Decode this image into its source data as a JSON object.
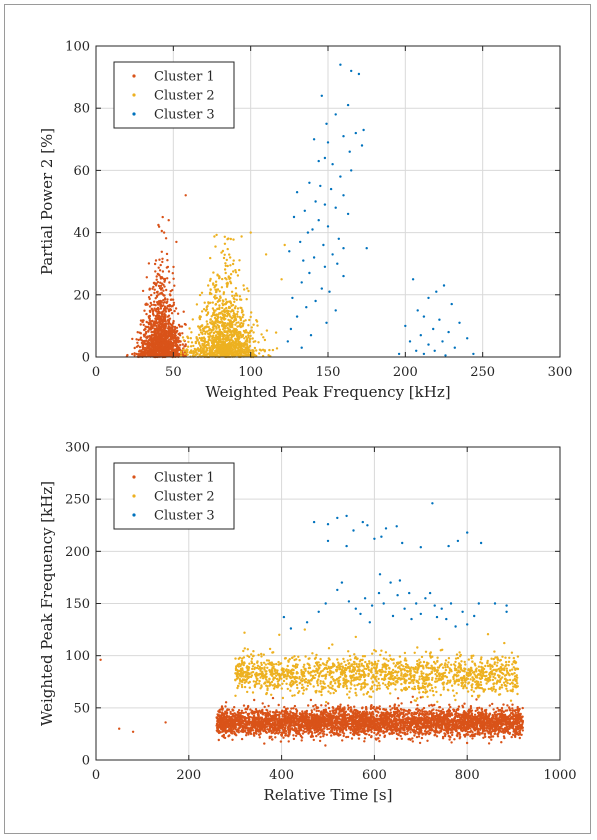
{
  "colors": {
    "cluster1": "#D95319",
    "cluster2": "#EDB120",
    "cluster3": "#0072BD",
    "grid": "#d9d9d9",
    "axis": "#262626"
  },
  "chart_data": [
    {
      "type": "scatter",
      "xlabel": "Weighted Peak Frequency [kHz]",
      "ylabel": "Partial Power 2 [%]",
      "xlim": [
        0,
        300
      ],
      "ylim": [
        0,
        100
      ],
      "xticks": [
        "0",
        "50",
        "100",
        "150",
        "200",
        "250",
        "300"
      ],
      "yticks": [
        "0",
        "20",
        "40",
        "60",
        "80",
        "100"
      ],
      "grid": true,
      "legend": "top-left",
      "series": [
        {
          "name": "Cluster 1",
          "color": "#D95319",
          "cluster": {
            "n": 1400,
            "xmean": 42,
            "xsd": 6.5,
            "ymode": "expdecay",
            "ymean": 6,
            "ymax": 45,
            "xmin": 20,
            "xmax": 58
          },
          "points": [
            [
              47,
              44
            ],
            [
              58,
              52
            ],
            [
              52,
              37
            ],
            [
              44,
              40
            ]
          ]
        },
        {
          "name": "Cluster 2",
          "color": "#EDB120",
          "cluster": {
            "n": 1200,
            "xmean": 83,
            "xsd": 10,
            "ymode": "expdecay",
            "ymean": 7,
            "ymax": 40,
            "xmin": 55,
            "xmax": 125
          },
          "points": [
            [
              100,
              40
            ],
            [
              110,
              33
            ],
            [
              122,
              36
            ],
            [
              120,
              25
            ]
          ]
        },
        {
          "name": "Cluster 3",
          "color": "#0072BD",
          "points": [
            [
              158,
              94
            ],
            [
              165,
              92
            ],
            [
              170,
              91
            ],
            [
              146,
              84
            ],
            [
              163,
              81
            ],
            [
              155,
              78
            ],
            [
              149,
              75
            ],
            [
              168,
              72
            ],
            [
              173,
              73
            ],
            [
              160,
              71
            ],
            [
              141,
              70
            ],
            [
              150,
              69
            ],
            [
              172,
              68
            ],
            [
              164,
              66
            ],
            [
              148,
              64
            ],
            [
              144,
              63
            ],
            [
              153,
              62
            ],
            [
              165,
              60
            ],
            [
              158,
              58
            ],
            [
              138,
              56
            ],
            [
              145,
              55
            ],
            [
              152,
              54
            ],
            [
              130,
              53
            ],
            [
              160,
              52
            ],
            [
              142,
              50
            ],
            [
              148,
              49
            ],
            [
              155,
              48
            ],
            [
              135,
              47
            ],
            [
              163,
              46
            ],
            [
              128,
              45
            ],
            [
              144,
              44
            ],
            [
              150,
              42
            ],
            [
              140,
              41
            ],
            [
              137,
              40
            ],
            [
              157,
              38
            ],
            [
              132,
              37
            ],
            [
              147,
              36
            ],
            [
              160,
              35
            ],
            [
              175,
              35
            ],
            [
              125,
              34
            ],
            [
              153,
              33
            ],
            [
              141,
              32
            ],
            [
              134,
              31
            ],
            [
              156,
              30
            ],
            [
              148,
              29
            ],
            [
              138,
              27
            ],
            [
              160,
              26
            ],
            [
              133,
              24
            ],
            [
              146,
              22
            ],
            [
              151,
              21
            ],
            [
              127,
              19
            ],
            [
              142,
              18
            ],
            [
              136,
              16
            ],
            [
              155,
              15
            ],
            [
              130,
              13
            ],
            [
              149,
              11
            ],
            [
              126,
              9
            ],
            [
              139,
              7
            ],
            [
              124,
              5
            ],
            [
              133,
              3
            ],
            [
              205,
              25
            ],
            [
              225,
              23
            ],
            [
              220,
              21
            ],
            [
              215,
              19
            ],
            [
              230,
              17
            ],
            [
              208,
              15
            ],
            [
              212,
              13
            ],
            [
              222,
              12
            ],
            [
              235,
              11
            ],
            [
              200,
              10
            ],
            [
              218,
              9
            ],
            [
              228,
              8
            ],
            [
              210,
              7
            ],
            [
              240,
              6
            ],
            [
              203,
              5
            ],
            [
              224,
              5
            ],
            [
              215,
              4
            ],
            [
              232,
              3
            ],
            [
              207,
              2
            ],
            [
              219,
              2
            ],
            [
              196,
              1
            ],
            [
              244,
              1
            ],
            [
              212,
              1
            ],
            [
              226,
              0.5
            ]
          ]
        }
      ]
    },
    {
      "type": "scatter",
      "xlabel": "Relative Time [s]",
      "ylabel": "Weighted Peak Frequency [kHz]",
      "xlim": [
        0,
        1000
      ],
      "ylim": [
        0,
        300
      ],
      "xticks": [
        "0",
        "200",
        "400",
        "600",
        "800",
        "1000"
      ],
      "yticks": [
        "0",
        "50",
        "100",
        "150",
        "200",
        "250",
        "300"
      ],
      "grid": true,
      "legend": "top-left",
      "series": [
        {
          "name": "Cluster 1",
          "color": "#D95319",
          "cluster": {
            "n": 4200,
            "xmin": 260,
            "xmax": 920,
            "ymean": 36,
            "ysd": 6.5
          },
          "points": [
            [
              50,
              30
            ],
            [
              80,
              27
            ],
            [
              150,
              36
            ],
            [
              10,
              96
            ],
            [
              700,
              60
            ],
            [
              820,
              58
            ]
          ]
        },
        {
          "name": "Cluster 2",
          "color": "#EDB120",
          "cluster": {
            "n": 1600,
            "xmin": 300,
            "xmax": 910,
            "ymean": 82,
            "ysd": 9
          },
          "points": [
            [
              320,
              122
            ],
            [
              395,
              120
            ],
            [
              450,
              125
            ],
            [
              560,
              118
            ],
            [
              740,
              116
            ],
            [
              880,
              112
            ]
          ]
        },
        {
          "name": "Cluster 3",
          "color": "#0072BD",
          "points": [
            [
              470,
              228
            ],
            [
              500,
              226
            ],
            [
              520,
              232
            ],
            [
              540,
              234
            ],
            [
              555,
              220
            ],
            [
              575,
              228
            ],
            [
              600,
              212
            ],
            [
              615,
              214
            ],
            [
              625,
              222
            ],
            [
              648,
              224
            ],
            [
              660,
              208
            ],
            [
              700,
              204
            ],
            [
              725,
              246
            ],
            [
              760,
              205
            ],
            [
              780,
              210
            ],
            [
              800,
              218
            ],
            [
              830,
              208
            ],
            [
              500,
              210
            ],
            [
              540,
              205
            ],
            [
              585,
              225
            ],
            [
              405,
              137
            ],
            [
              420,
              126
            ],
            [
              455,
              132
            ],
            [
              480,
              142
            ],
            [
              495,
              150
            ],
            [
              520,
              163
            ],
            [
              530,
              170
            ],
            [
              545,
              152
            ],
            [
              560,
              145
            ],
            [
              570,
              140
            ],
            [
              580,
              155
            ],
            [
              595,
              148
            ],
            [
              610,
              160
            ],
            [
              620,
              150
            ],
            [
              635,
              170
            ],
            [
              640,
              138
            ],
            [
              655,
              172
            ],
            [
              665,
              145
            ],
            [
              675,
              160
            ],
            [
              690,
              150
            ],
            [
              700,
              140
            ],
            [
              710,
              155
            ],
            [
              720,
              160
            ],
            [
              730,
              148
            ],
            [
              745,
              145
            ],
            [
              755,
              135
            ],
            [
              765,
              150
            ],
            [
              775,
              128
            ],
            [
              790,
              142
            ],
            [
              800,
              130
            ],
            [
              815,
              138
            ],
            [
              825,
              150
            ],
            [
              860,
              150
            ],
            [
              885,
              148
            ],
            [
              885,
              142
            ],
            [
              590,
              132
            ],
            [
              612,
              178
            ],
            [
              650,
              158
            ],
            [
              680,
              135
            ],
            [
              735,
              137
            ]
          ]
        }
      ]
    }
  ]
}
